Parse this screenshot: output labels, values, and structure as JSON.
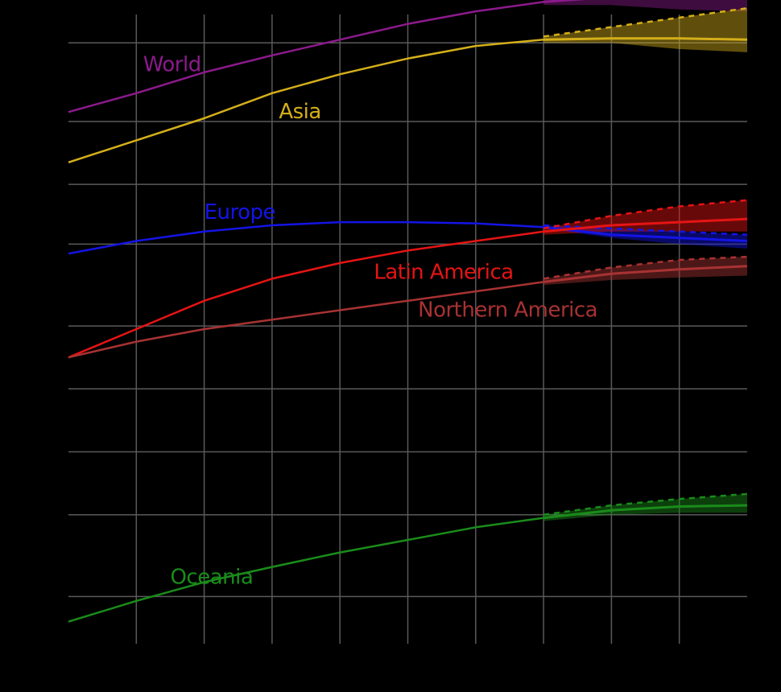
{
  "chart_data": {
    "type": "line",
    "title": "",
    "xlabel": "",
    "ylabel": "",
    "grid": true,
    "background": "#000000",
    "grid_color": "#5a5a5a",
    "xlim": [
      0,
      10
    ],
    "ylim": [
      0,
      10
    ],
    "x_gridlines": [
      1,
      2,
      3,
      4,
      5,
      6,
      7,
      8,
      9
    ],
    "y_gridlines": [
      0.75,
      2.05,
      3.05,
      4.05,
      5.05,
      6.35,
      7.3,
      8.3,
      9.55
    ],
    "projection_start": 7,
    "series": [
      {
        "name": "World",
        "color": "#8c1a8c",
        "points": [
          [
            0,
            8.45
          ],
          [
            1,
            8.75
          ],
          [
            2,
            9.08
          ],
          [
            3,
            9.35
          ],
          [
            4,
            9.6
          ],
          [
            5,
            9.85
          ],
          [
            6,
            10.05
          ],
          [
            7,
            10.2
          ]
        ],
        "projection": [
          [
            7,
            10.2
          ],
          [
            8,
            10.28
          ],
          [
            9,
            10.3
          ],
          [
            10,
            10.32
          ]
        ],
        "projection_high": [
          [
            7,
            10.25
          ],
          [
            8,
            10.45
          ],
          [
            9,
            10.6
          ],
          [
            10,
            10.8
          ]
        ],
        "projection_low": [
          [
            7,
            10.15
          ],
          [
            8,
            10.15
          ],
          [
            9,
            10.08
          ],
          [
            10,
            10.05
          ]
        ],
        "label": {
          "text": "World",
          "x": 1.1,
          "y": 9.1
        }
      },
      {
        "name": "Asia",
        "color": "#d4af1a",
        "points": [
          [
            0,
            7.65
          ],
          [
            1,
            8.0
          ],
          [
            2,
            8.35
          ],
          [
            3,
            8.75
          ],
          [
            4,
            9.05
          ],
          [
            5,
            9.3
          ],
          [
            6,
            9.5
          ],
          [
            7,
            9.6
          ]
        ],
        "projection": [
          [
            7,
            9.6
          ],
          [
            8,
            9.62
          ],
          [
            9,
            9.62
          ],
          [
            10,
            9.6
          ]
        ],
        "projection_high": [
          [
            7,
            9.65
          ],
          [
            8,
            9.8
          ],
          [
            9,
            9.95
          ],
          [
            10,
            10.1
          ]
        ],
        "projection_low": [
          [
            7,
            9.55
          ],
          [
            8,
            9.55
          ],
          [
            9,
            9.45
          ],
          [
            10,
            9.4
          ]
        ],
        "label": {
          "text": "Asia",
          "x": 3.1,
          "y": 8.35
        }
      },
      {
        "name": "Europe",
        "color": "#1414e6",
        "points": [
          [
            0,
            6.2
          ],
          [
            1,
            6.4
          ],
          [
            2,
            6.55
          ],
          [
            3,
            6.65
          ],
          [
            4,
            6.7
          ],
          [
            5,
            6.7
          ],
          [
            6,
            6.68
          ],
          [
            7,
            6.62
          ]
        ],
        "projection": [
          [
            7,
            6.62
          ],
          [
            8,
            6.5
          ],
          [
            9,
            6.45
          ],
          [
            10,
            6.4
          ]
        ],
        "projection_high": [
          [
            7,
            6.65
          ],
          [
            8,
            6.6
          ],
          [
            9,
            6.55
          ],
          [
            10,
            6.5
          ]
        ],
        "projection_low": [
          [
            7,
            6.6
          ],
          [
            8,
            6.45
          ],
          [
            9,
            6.35
          ],
          [
            10,
            6.28
          ]
        ],
        "label": {
          "text": "Europe",
          "x": 2.0,
          "y": 6.75
        }
      },
      {
        "name": "Latin America",
        "color": "#e61414",
        "points": [
          [
            0,
            4.55
          ],
          [
            1,
            5.0
          ],
          [
            2,
            5.45
          ],
          [
            3,
            5.8
          ],
          [
            4,
            6.05
          ],
          [
            5,
            6.25
          ],
          [
            6,
            6.4
          ],
          [
            7,
            6.55
          ]
        ],
        "projection": [
          [
            7,
            6.55
          ],
          [
            8,
            6.65
          ],
          [
            9,
            6.7
          ],
          [
            10,
            6.75
          ]
        ],
        "projection_high": [
          [
            7,
            6.6
          ],
          [
            8,
            6.8
          ],
          [
            9,
            6.95
          ],
          [
            10,
            7.05
          ]
        ],
        "projection_low": [
          [
            7,
            6.5
          ],
          [
            8,
            6.55
          ],
          [
            9,
            6.55
          ],
          [
            10,
            6.55
          ]
        ],
        "label": {
          "text": "Latin America",
          "x": 4.5,
          "y": 5.8
        }
      },
      {
        "name": "Northern America",
        "color": "#a83232",
        "points": [
          [
            0,
            4.55
          ],
          [
            1,
            4.8
          ],
          [
            2,
            5.0
          ],
          [
            3,
            5.15
          ],
          [
            4,
            5.3
          ],
          [
            5,
            5.45
          ],
          [
            6,
            5.6
          ],
          [
            7,
            5.75
          ]
        ],
        "projection": [
          [
            7,
            5.75
          ],
          [
            8,
            5.88
          ],
          [
            9,
            5.95
          ],
          [
            10,
            6.0
          ]
        ],
        "projection_high": [
          [
            7,
            5.8
          ],
          [
            8,
            5.98
          ],
          [
            9,
            6.1
          ],
          [
            10,
            6.15
          ]
        ],
        "projection_low": [
          [
            7,
            5.7
          ],
          [
            8,
            5.78
          ],
          [
            9,
            5.82
          ],
          [
            10,
            5.85
          ]
        ],
        "label": {
          "text": "Northern America",
          "x": 5.15,
          "y": 5.2
        }
      },
      {
        "name": "Oceania",
        "color": "#1a8c1a",
        "points": [
          [
            0,
            0.35
          ],
          [
            1,
            0.68
          ],
          [
            2,
            0.98
          ],
          [
            3,
            1.22
          ],
          [
            4,
            1.45
          ],
          [
            5,
            1.65
          ],
          [
            6,
            1.85
          ],
          [
            7,
            2.0
          ]
        ],
        "projection": [
          [
            7,
            2.0
          ],
          [
            8,
            2.12
          ],
          [
            9,
            2.18
          ],
          [
            10,
            2.2
          ]
        ],
        "projection_high": [
          [
            7,
            2.05
          ],
          [
            8,
            2.2
          ],
          [
            9,
            2.3
          ],
          [
            10,
            2.38
          ]
        ],
        "projection_low": [
          [
            7,
            1.95
          ],
          [
            8,
            2.05
          ],
          [
            9,
            2.08
          ],
          [
            10,
            2.08
          ]
        ],
        "label": {
          "text": "Oceania",
          "x": 1.5,
          "y": 0.95
        }
      }
    ]
  }
}
